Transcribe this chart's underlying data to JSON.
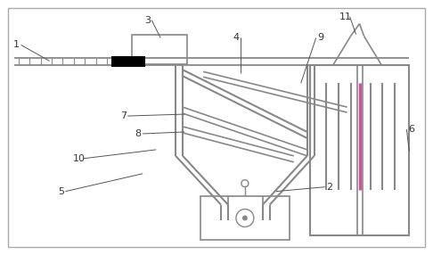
{
  "bg_color": "#ffffff",
  "line_color": "#888888",
  "dark_color": "#555555",
  "pink_color": "#cc5599",
  "label_color": "#333333",
  "border_color": "#999999"
}
